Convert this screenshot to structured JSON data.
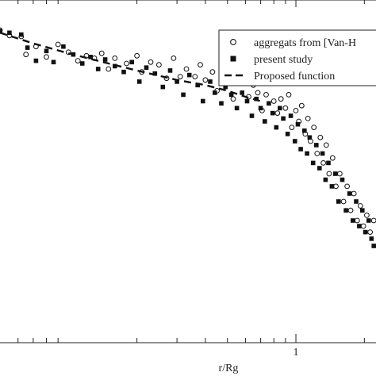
{
  "chart_data": {
    "type": "scatter",
    "xlabel": "r/Rg",
    "ylabel": "",
    "x_scale": "log",
    "y_scale": "log",
    "xlim": [
      0.05,
      2.25
    ],
    "x_major_ticks": [
      1
    ],
    "x_minor_ticks": [
      0.06,
      0.07,
      0.08,
      0.09,
      0.2,
      0.3,
      0.4,
      0.5,
      0.6,
      0.7,
      0.8,
      0.9,
      2
    ],
    "x_tick_labels": [
      {
        "x": 1,
        "label": "1"
      }
    ],
    "legend": {
      "placement": "top-right",
      "entries": [
        {
          "label": "aggregats from [Van-H",
          "marker": "open-circle"
        },
        {
          "label": "present study",
          "marker": "filled-square"
        },
        {
          "label": "Proposed function",
          "marker": "dashed-line"
        }
      ]
    },
    "colors": {
      "markers": "#111111",
      "axes": "#222222",
      "background": "#ffffff"
    },
    "series": [
      {
        "name": "aggregats from [Van-H",
        "marker": "open-circle",
        "points": [
          [
            0.05,
            0.87
          ],
          [
            0.055,
            0.81
          ],
          [
            0.062,
            0.8
          ],
          [
            0.065,
            0.63
          ],
          [
            0.072,
            0.7
          ],
          [
            0.08,
            0.61
          ],
          [
            0.09,
            0.72
          ],
          [
            0.1,
            0.65
          ],
          [
            0.11,
            0.58
          ],
          [
            0.12,
            0.62
          ],
          [
            0.13,
            0.6
          ],
          [
            0.14,
            0.64
          ],
          [
            0.15,
            0.52
          ],
          [
            0.16,
            0.6
          ],
          [
            0.18,
            0.56
          ],
          [
            0.2,
            0.62
          ],
          [
            0.21,
            0.5
          ],
          [
            0.23,
            0.57
          ],
          [
            0.25,
            0.55
          ],
          [
            0.27,
            0.46
          ],
          [
            0.29,
            0.6
          ],
          [
            0.31,
            0.47
          ],
          [
            0.33,
            0.52
          ],
          [
            0.36,
            0.47
          ],
          [
            0.38,
            0.55
          ],
          [
            0.4,
            0.45
          ],
          [
            0.43,
            0.5
          ],
          [
            0.45,
            0.39
          ],
          [
            0.47,
            0.47
          ],
          [
            0.5,
            0.43
          ],
          [
            0.53,
            0.35
          ],
          [
            0.56,
            0.43
          ],
          [
            0.59,
            0.47
          ],
          [
            0.62,
            0.36
          ],
          [
            0.65,
            0.42
          ],
          [
            0.68,
            0.38
          ],
          [
            0.71,
            0.3
          ],
          [
            0.74,
            0.37
          ],
          [
            0.77,
            0.45
          ],
          [
            0.8,
            0.34
          ],
          [
            0.83,
            0.29
          ],
          [
            0.86,
            0.35
          ],
          [
            0.9,
            0.31
          ],
          [
            0.93,
            0.37
          ],
          [
            0.96,
            0.24
          ],
          [
            1.0,
            0.3
          ],
          [
            1.03,
            0.26
          ],
          [
            1.06,
            0.32
          ],
          [
            1.1,
            0.22
          ],
          [
            1.13,
            0.27
          ],
          [
            1.16,
            0.2
          ],
          [
            1.2,
            0.24
          ],
          [
            1.24,
            0.17
          ],
          [
            1.28,
            0.21
          ],
          [
            1.32,
            0.15
          ],
          [
            1.36,
            0.19
          ],
          [
            1.4,
            0.13
          ],
          [
            1.45,
            0.16
          ],
          [
            1.5,
            0.11
          ],
          [
            1.56,
            0.13
          ],
          [
            1.62,
            0.09
          ],
          [
            1.68,
            0.11
          ],
          [
            1.74,
            0.08
          ],
          [
            1.8,
            0.1
          ],
          [
            1.86,
            0.07
          ],
          [
            1.92,
            0.085
          ],
          [
            1.98,
            0.065
          ],
          [
            2.05,
            0.075
          ],
          [
            2.12,
            0.06
          ],
          [
            2.2,
            0.07
          ]
        ]
      },
      {
        "name": "present study",
        "marker": "filled-square",
        "points": [
          [
            0.05,
            0.86
          ],
          [
            0.055,
            0.84
          ],
          [
            0.062,
            0.82
          ],
          [
            0.066,
            0.69
          ],
          [
            0.072,
            0.58
          ],
          [
            0.08,
            0.66
          ],
          [
            0.086,
            0.57
          ],
          [
            0.095,
            0.7
          ],
          [
            0.105,
            0.63
          ],
          [
            0.115,
            0.56
          ],
          [
            0.125,
            0.61
          ],
          [
            0.135,
            0.52
          ],
          [
            0.145,
            0.59
          ],
          [
            0.16,
            0.54
          ],
          [
            0.175,
            0.5
          ],
          [
            0.19,
            0.57
          ],
          [
            0.205,
            0.44
          ],
          [
            0.22,
            0.53
          ],
          [
            0.24,
            0.49
          ],
          [
            0.26,
            0.41
          ],
          [
            0.28,
            0.51
          ],
          [
            0.3,
            0.44
          ],
          [
            0.32,
            0.37
          ],
          [
            0.34,
            0.48
          ],
          [
            0.37,
            0.42
          ],
          [
            0.39,
            0.34
          ],
          [
            0.42,
            0.44
          ],
          [
            0.44,
            0.38
          ],
          [
            0.47,
            0.33
          ],
          [
            0.49,
            0.41
          ],
          [
            0.52,
            0.37
          ],
          [
            0.55,
            0.31
          ],
          [
            0.58,
            0.38
          ],
          [
            0.61,
            0.34
          ],
          [
            0.64,
            0.28
          ],
          [
            0.67,
            0.35
          ],
          [
            0.7,
            0.31
          ],
          [
            0.73,
            0.26
          ],
          [
            0.76,
            0.33
          ],
          [
            0.79,
            0.29
          ],
          [
            0.82,
            0.24
          ],
          [
            0.85,
            0.31
          ],
          [
            0.88,
            0.27
          ],
          [
            0.92,
            0.22
          ],
          [
            0.95,
            0.28
          ],
          [
            0.99,
            0.2
          ],
          [
            1.02,
            0.25
          ],
          [
            1.05,
            0.18
          ],
          [
            1.09,
            0.23
          ],
          [
            1.12,
            0.17
          ],
          [
            1.15,
            0.21
          ],
          [
            1.19,
            0.15
          ],
          [
            1.23,
            0.19
          ],
          [
            1.27,
            0.14
          ],
          [
            1.31,
            0.17
          ],
          [
            1.35,
            0.12
          ],
          [
            1.39,
            0.15
          ],
          [
            1.44,
            0.11
          ],
          [
            1.49,
            0.13
          ],
          [
            1.54,
            0.09
          ],
          [
            1.6,
            0.12
          ],
          [
            1.66,
            0.08
          ],
          [
            1.72,
            0.1
          ],
          [
            1.78,
            0.07
          ],
          [
            1.84,
            0.09
          ],
          [
            1.9,
            0.065
          ],
          [
            1.96,
            0.08
          ],
          [
            2.02,
            0.06
          ],
          [
            2.09,
            0.07
          ],
          [
            2.15,
            0.055
          ],
          [
            2.2,
            0.05
          ]
        ]
      },
      {
        "name": "Proposed function",
        "marker": "dashed-line",
        "points": [
          [
            0.05,
            0.84
          ],
          [
            0.07,
            0.73
          ],
          [
            0.1,
            0.64
          ],
          [
            0.15,
            0.56
          ],
          [
            0.2,
            0.51
          ],
          [
            0.3,
            0.45
          ],
          [
            0.4,
            0.42
          ],
          [
            0.5,
            0.39
          ],
          [
            0.6,
            0.36
          ],
          [
            0.7,
            0.34
          ]
        ]
      }
    ]
  }
}
